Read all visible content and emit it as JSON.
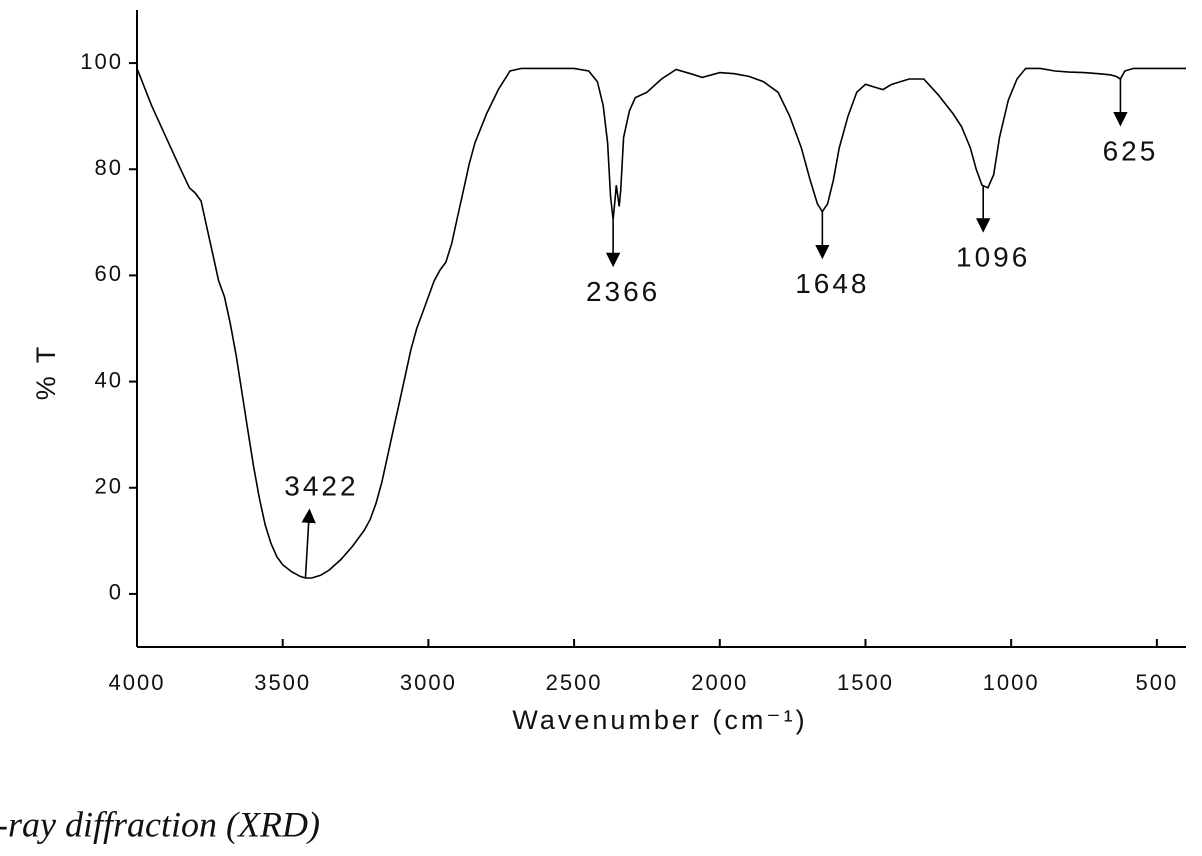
{
  "chart_data": {
    "type": "line",
    "x_label": "Wavenumber (cm⁻¹)",
    "y_label": "% T",
    "color": "#000000",
    "x": [
      4000,
      3950,
      3900,
      3850,
      3820,
      3800,
      3780,
      3760,
      3740,
      3720,
      3700,
      3680,
      3660,
      3640,
      3620,
      3600,
      3580,
      3560,
      3540,
      3520,
      3500,
      3470,
      3440,
      3422,
      3400,
      3370,
      3340,
      3300,
      3260,
      3220,
      3200,
      3180,
      3160,
      3140,
      3120,
      3100,
      3080,
      3060,
      3040,
      3020,
      3000,
      2980,
      2960,
      2940,
      2920,
      2900,
      2880,
      2860,
      2840,
      2800,
      2760,
      2720,
      2680,
      2600,
      2500,
      2450,
      2420,
      2400,
      2385,
      2375,
      2366,
      2360,
      2355,
      2345,
      2340,
      2330,
      2310,
      2290,
      2250,
      2200,
      2150,
      2100,
      2060,
      2000,
      1950,
      1900,
      1850,
      1800,
      1760,
      1720,
      1690,
      1665,
      1648,
      1630,
      1610,
      1590,
      1560,
      1530,
      1500,
      1470,
      1440,
      1410,
      1350,
      1300,
      1250,
      1200,
      1170,
      1140,
      1120,
      1100,
      1080,
      1060,
      1040,
      1010,
      980,
      950,
      900,
      850,
      800,
      750,
      700,
      660,
      640,
      625,
      610,
      580,
      500,
      400
    ],
    "values": [
      99,
      92,
      86,
      80,
      76.5,
      75.5,
      74,
      69,
      64,
      59,
      56,
      51,
      45,
      38,
      31,
      24,
      18,
      13,
      9.5,
      7,
      5.5,
      4.2,
      3.3,
      3,
      3,
      3.5,
      4.5,
      6.5,
      9,
      12,
      14,
      17,
      21,
      26,
      31,
      36,
      41,
      46,
      50,
      53,
      56,
      59,
      61,
      62.5,
      66,
      71,
      76,
      81,
      85,
      90.5,
      95,
      98.5,
      99,
      99,
      99,
      98.5,
      96.5,
      92,
      85,
      75,
      70.5,
      74,
      77,
      73,
      76,
      86,
      91,
      93.5,
      94.5,
      97,
      98.8,
      98,
      97.3,
      98.2,
      98,
      97.5,
      96.5,
      94.5,
      90,
      84,
      78,
      73.5,
      72,
      73.5,
      78,
      84,
      90,
      94.5,
      96,
      95.5,
      95,
      96,
      97,
      97,
      94,
      90.5,
      88,
      84,
      80,
      77,
      76.5,
      79,
      86,
      93,
      97,
      99,
      99,
      98.5,
      98.3,
      98.2,
      98,
      97.8,
      97.5,
      97,
      98.5,
      99,
      99,
      99
    ],
    "xlim": [
      4000,
      400
    ],
    "ylim": [
      -10,
      110
    ],
    "xticks": [
      4000,
      3500,
      3000,
      2500,
      2000,
      1500,
      1000,
      500
    ],
    "yticks": [
      0,
      20,
      40,
      60,
      80,
      100
    ],
    "annotations": [
      {
        "label": "3422",
        "x": 3422,
        "y": 3
      },
      {
        "label": "2366",
        "x": 2366,
        "y": 70.5
      },
      {
        "label": "1648",
        "x": 1648,
        "y": 72
      },
      {
        "label": "1096",
        "x": 1096,
        "y": 77
      },
      {
        "label": "625",
        "x": 625,
        "y": 97
      }
    ]
  },
  "caption": "-ray diffraction (XRD)"
}
